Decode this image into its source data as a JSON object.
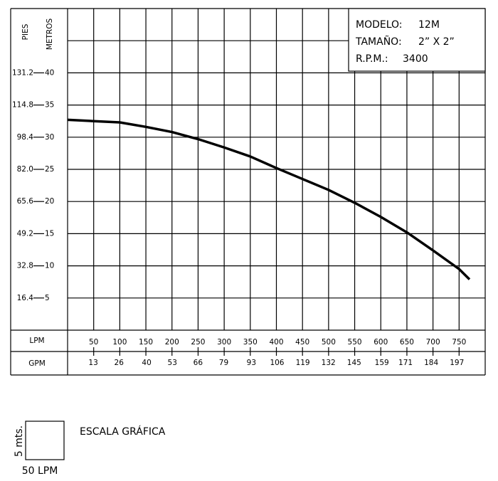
{
  "chart_data": {
    "type": "line",
    "y_label": "METROS",
    "y2_label": "PIES",
    "x_label": "LPM",
    "x2_label": "GPM",
    "info": [
      {
        "label": "MODELO:",
        "value": "12M"
      },
      {
        "label": "TAMAÑO:",
        "value": "2” X 2”"
      },
      {
        "label": "R.P.M.:",
        "value": "3400"
      }
    ],
    "x": [
      0,
      50,
      100,
      150,
      200,
      250,
      300,
      350,
      400,
      450,
      500,
      550,
      600,
      650,
      700,
      750,
      770
    ],
    "series": [
      {
        "name": "12M",
        "color": "#000000",
        "values": [
          32.7,
          32.5,
          32.3,
          31.6,
          30.8,
          29.7,
          28.4,
          27.0,
          25.2,
          23.5,
          21.8,
          19.8,
          17.6,
          15.2,
          12.4,
          9.5,
          7.9
        ]
      }
    ],
    "xlim": [
      0,
      800
    ],
    "xticks": [
      50,
      100,
      150,
      200,
      250,
      300,
      350,
      400,
      450,
      500,
      550,
      600,
      650,
      700,
      750
    ],
    "x2lim": [
      0,
      211.3
    ],
    "x2ticks": [
      13,
      26,
      40,
      53,
      66,
      79,
      93,
      106,
      119,
      132,
      145,
      159,
      171,
      184,
      197
    ],
    "ylim": [
      0,
      50
    ],
    "yticks": [
      5,
      10,
      15,
      20,
      25,
      30,
      35,
      40
    ],
    "y2lim": [
      0,
      164
    ],
    "y2ticks": [
      16.4,
      32.8,
      49.2,
      65.6,
      {
        "value": 82,
        "label": "82.0"
      },
      98.4,
      114.8,
      131.2
    ],
    "grid": true,
    "scale_legend": {
      "title": "ESCALA GRÁFICA",
      "height_label": "5 mts.",
      "width_label": "50 LPM"
    }
  }
}
